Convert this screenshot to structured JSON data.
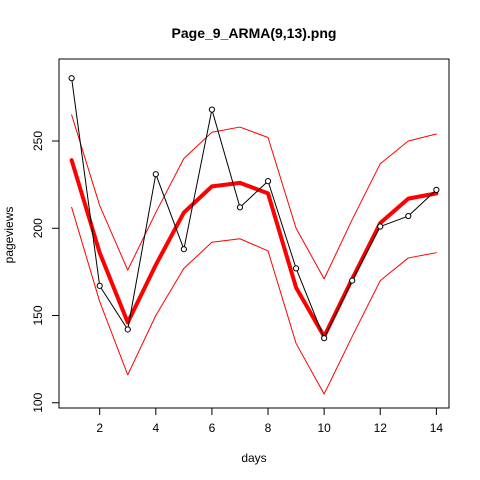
{
  "chart_data": {
    "type": "line",
    "title": "Page_9_ARMA(9,13).png",
    "xlabel": "days",
    "ylabel": "pageviews",
    "xlim": [
      0.55,
      14.45
    ],
    "ylim": [
      97,
      297
    ],
    "x_ticks": [
      2,
      4,
      6,
      8,
      10,
      12,
      14
    ],
    "y_ticks": [
      100,
      150,
      200,
      250
    ],
    "grid": false,
    "legend": "none",
    "x": [
      1,
      2,
      3,
      4,
      5,
      6,
      7,
      8,
      9,
      10,
      11,
      12,
      13,
      14
    ],
    "series": [
      {
        "role": "observed",
        "color": "#000000",
        "style": "line+points",
        "values": [
          286,
          167,
          142,
          231,
          188,
          268,
          212,
          227,
          177,
          137,
          170,
          201,
          207,
          222
        ]
      },
      {
        "role": "fitted",
        "color": "#ff0000",
        "style": "thick-line",
        "values": [
          239,
          186,
          146,
          179,
          209,
          224,
          226,
          220,
          166,
          138,
          171,
          203,
          217,
          220
        ]
      },
      {
        "role": "upper-bound",
        "color": "#ff0000",
        "style": "thin-line",
        "values": [
          265,
          213,
          176,
          209,
          240,
          255,
          258,
          252,
          200,
          171,
          205,
          237,
          250,
          254
        ]
      },
      {
        "role": "lower-bound",
        "color": "#ff0000",
        "style": "thin-line",
        "values": [
          212,
          158,
          116,
          150,
          177,
          192,
          194,
          187,
          134,
          105,
          138,
          170,
          183,
          186
        ]
      }
    ]
  }
}
